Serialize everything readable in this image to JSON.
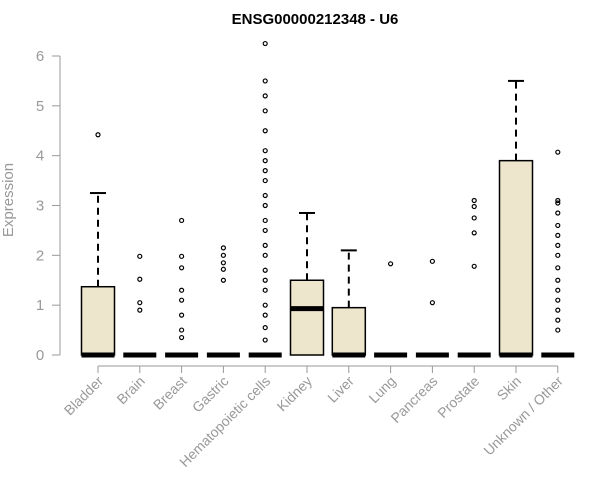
{
  "chart_data": {
    "type": "boxplot",
    "title": "ENSG00000212348 - U6",
    "ylabel": "Expression",
    "xlabel": "",
    "ylim": [
      0,
      6
    ],
    "yticks": [
      0,
      1,
      2,
      3,
      4,
      5,
      6
    ],
    "grid": false,
    "legend": "none",
    "colors": {
      "box_fill": "#ede6cc",
      "stroke": "#000000",
      "axis": "#999999"
    },
    "categories": [
      "Bladder",
      "Brain",
      "Breast",
      "Gastric",
      "Hematopoietic cells",
      "Kidney",
      "Liver",
      "Lung",
      "Pancreas",
      "Prostate",
      "Skin",
      "Unknown / Other"
    ],
    "boxes": [
      {
        "category": "Bladder",
        "min": 0,
        "q1": 0,
        "median": 0,
        "q3": 1.37,
        "max": 3.25,
        "outliers": [
          4.42
        ]
      },
      {
        "category": "Brain",
        "min": 0,
        "q1": 0,
        "median": 0,
        "q3": 0,
        "max": 0,
        "outliers": [
          0.9,
          1.05,
          1.52,
          1.98
        ]
      },
      {
        "category": "Breast",
        "min": 0,
        "q1": 0,
        "median": 0,
        "q3": 0,
        "max": 0,
        "outliers": [
          0.35,
          0.5,
          0.8,
          1.1,
          1.3,
          1.75,
          1.98,
          2.7
        ]
      },
      {
        "category": "Gastric",
        "min": 0,
        "q1": 0,
        "median": 0,
        "q3": 0,
        "max": 0,
        "outliers": [
          1.5,
          1.72,
          1.85,
          2.0,
          2.15
        ]
      },
      {
        "category": "Hematopoietic cells",
        "min": 0,
        "q1": 0,
        "median": 0,
        "q3": 0,
        "max": 0,
        "outliers": [
          0.3,
          0.55,
          0.8,
          1.0,
          1.3,
          1.5,
          1.7,
          2.0,
          2.2,
          2.5,
          2.7,
          3.0,
          3.2,
          3.5,
          3.7,
          3.9,
          4.1,
          4.5,
          4.9,
          5.2,
          5.5,
          6.25
        ]
      },
      {
        "category": "Kidney",
        "min": 0,
        "q1": 0,
        "median": 0.93,
        "q3": 1.5,
        "max": 2.85,
        "outliers": []
      },
      {
        "category": "Liver",
        "min": 0,
        "q1": 0,
        "median": 0,
        "q3": 0.95,
        "max": 2.1,
        "outliers": []
      },
      {
        "category": "Lung",
        "min": 0,
        "q1": 0,
        "median": 0,
        "q3": 0,
        "max": 0,
        "outliers": [
          1.83
        ]
      },
      {
        "category": "Pancreas",
        "min": 0,
        "q1": 0,
        "median": 0,
        "q3": 0,
        "max": 0,
        "outliers": [
          1.05,
          1.88
        ]
      },
      {
        "category": "Prostate",
        "min": 0,
        "q1": 0,
        "median": 0,
        "q3": 0,
        "max": 0,
        "outliers": [
          1.78,
          2.45,
          2.75,
          2.98,
          3.1
        ]
      },
      {
        "category": "Skin",
        "min": 0,
        "q1": 0,
        "median": 0,
        "q3": 3.9,
        "max": 5.5,
        "outliers": []
      },
      {
        "category": "Unknown / Other",
        "min": 0,
        "q1": 0,
        "median": 0,
        "q3": 0,
        "max": 0,
        "outliers": [
          0.5,
          0.7,
          0.9,
          1.1,
          1.3,
          1.5,
          1.75,
          2.0,
          2.2,
          2.4,
          2.6,
          2.85,
          3.05,
          3.1,
          4.07
        ]
      }
    ]
  }
}
